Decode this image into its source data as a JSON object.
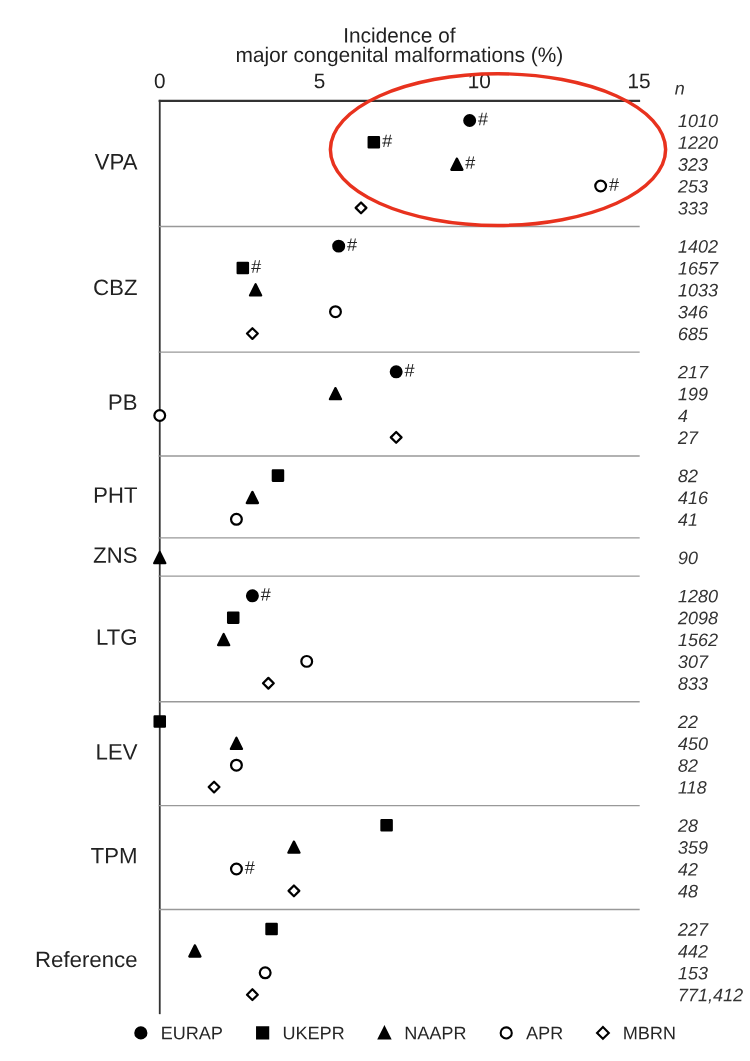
{
  "chart_data": [
    {
      "type": "scatter",
      "orientation": "horizontal",
      "xlabel": "Incidence of\nmajor congenital malformations (%)",
      "ylabel": "VPA",
      "categories": [
        "1010",
        "1220",
        "323",
        "253",
        "333"
      ],
      "xlim": [
        0,
        15
      ],
      "xticks": [
        0,
        5,
        10,
        15
      ],
      "annotations": [
        "n",
        {
          "text": "#",
          "x": 9.7,
          "y": "1010"
        },
        {
          "text": "#",
          "x": 6.7,
          "y": "1220"
        },
        {
          "text": "#",
          "x": 9.3,
          "y": "323"
        },
        {
          "text": "#",
          "x": 13.8,
          "y": "253"
        }
      ],
      "series": [
        {
          "color": "#000000",
          "marker": "circle",
          "values": [
            9.7,
            null,
            null,
            null,
            null
          ]
        },
        {
          "color": "#000000",
          "marker": "square",
          "values": [
            null,
            6.7,
            null,
            null,
            null
          ]
        },
        {
          "color": "#000000",
          "marker": "triangle",
          "values": [
            null,
            null,
            9.3,
            null,
            null
          ]
        },
        {
          "color": "#ffffff",
          "marker": "circle",
          "values": [
            null,
            null,
            null,
            13.8,
            null
          ]
        },
        {
          "color": "#ffffff",
          "marker": "diamond",
          "values": [
            null,
            null,
            null,
            null,
            6.3
          ]
        }
      ]
    },
    {
      "type": "scatter",
      "orientation": "horizontal",
      "ylabel": "CBZ",
      "categories": [
        "1402",
        "1657",
        "1033",
        "346",
        "685"
      ],
      "xlim": [
        0,
        15
      ],
      "tick_labels": "y",
      "annotations": [
        {
          "text": "#",
          "x": 5.6,
          "y": "1402"
        },
        {
          "text": "#",
          "x": 2.6,
          "y": "1657"
        }
      ],
      "series": [
        {
          "color": "#000000",
          "marker": "circle",
          "values": [
            5.6,
            null,
            null,
            null,
            null
          ]
        },
        {
          "color": "#000000",
          "marker": "square",
          "values": [
            null,
            2.6,
            null,
            null,
            null
          ]
        },
        {
          "color": "#000000",
          "marker": "triangle",
          "values": [
            null,
            null,
            3.0,
            null,
            null
          ]
        },
        {
          "color": "#ffffff",
          "marker": "circle",
          "values": [
            null,
            null,
            null,
            5.5,
            null
          ]
        },
        {
          "color": "#ffffff",
          "marker": "diamond",
          "values": [
            null,
            null,
            null,
            null,
            2.9
          ]
        }
      ]
    },
    {
      "type": "scatter",
      "orientation": "horizontal",
      "ylabel": "PB",
      "categories": [
        "217",
        "199",
        "4",
        "27"
      ],
      "xlim": [
        0,
        15
      ],
      "tick_labels": "y",
      "annotations": [
        {
          "text": "#",
          "x": 7.4,
          "y": "217"
        }
      ],
      "series": [
        {
          "color": "#000000",
          "marker": "circle",
          "values": [
            7.4,
            null,
            null,
            null
          ]
        },
        {
          "color": "#000000",
          "marker": "triangle",
          "values": [
            null,
            5.5,
            null,
            null
          ]
        },
        {
          "color": "#ffffff",
          "marker": "circle",
          "values": [
            null,
            null,
            0,
            null
          ]
        },
        {
          "color": "#ffffff",
          "marker": "diamond",
          "values": [
            null,
            null,
            null,
            7.4
          ]
        }
      ]
    },
    {
      "type": "scatter",
      "orientation": "horizontal",
      "ylabel": "PHT",
      "categories": [
        "82",
        "416",
        "41"
      ],
      "xlim": [
        0,
        15
      ],
      "tick_labels": "y",
      "series": [
        {
          "color": "#000000",
          "marker": "square",
          "values": [
            3.7,
            null,
            null
          ]
        },
        {
          "color": "#000000",
          "marker": "triangle",
          "values": [
            null,
            2.9,
            null
          ]
        },
        {
          "color": "#ffffff",
          "marker": "circle",
          "values": [
            null,
            null,
            2.4
          ]
        }
      ]
    },
    {
      "type": "scatter",
      "orientation": "horizontal",
      "ylabel": "ZNS",
      "categories": [
        "90"
      ],
      "xlim": [
        0,
        15
      ],
      "tick_labels": "y",
      "series": [
        {
          "color": "#000000",
          "marker": "triangle",
          "values": [
            0
          ]
        }
      ]
    },
    {
      "type": "scatter",
      "orientation": "horizontal",
      "ylabel": "LTG",
      "categories": [
        "1280",
        "2098",
        "1562",
        "307",
        "833"
      ],
      "xlim": [
        0,
        15
      ],
      "tick_labels": "y",
      "annotations": [
        {
          "text": "#",
          "x": 2.9,
          "y": "1280"
        }
      ],
      "series": [
        {
          "color": "#000000",
          "marker": "circle",
          "values": [
            2.9,
            null,
            null,
            null,
            null
          ]
        },
        {
          "color": "#000000",
          "marker": "square",
          "values": [
            null,
            2.3,
            null,
            null,
            null
          ]
        },
        {
          "color": "#000000",
          "marker": "triangle",
          "values": [
            null,
            null,
            2.0,
            null,
            null
          ]
        },
        {
          "color": "#ffffff",
          "marker": "circle",
          "values": [
            null,
            null,
            null,
            4.6,
            null
          ]
        },
        {
          "color": "#ffffff",
          "marker": "diamond",
          "values": [
            null,
            null,
            null,
            null,
            3.4
          ]
        }
      ]
    },
    {
      "type": "scatter",
      "orientation": "horizontal",
      "ylabel": "LEV",
      "categories": [
        "22",
        "450",
        "82",
        "118"
      ],
      "xlim": [
        0,
        15
      ],
      "tick_labels": "y",
      "series": [
        {
          "color": "#000000",
          "marker": "square",
          "values": [
            0,
            null,
            null,
            null
          ]
        },
        {
          "color": "#000000",
          "marker": "triangle",
          "values": [
            null,
            2.4,
            null,
            null
          ]
        },
        {
          "color": "#ffffff",
          "marker": "circle",
          "values": [
            null,
            null,
            2.4,
            null
          ]
        },
        {
          "color": "#ffffff",
          "marker": "diamond",
          "values": [
            null,
            null,
            null,
            1.7
          ]
        }
      ]
    },
    {
      "type": "scatter",
      "orientation": "horizontal",
      "ylabel": "TPM",
      "categories": [
        "28",
        "359",
        "42",
        "48"
      ],
      "xlim": [
        0,
        15
      ],
      "tick_labels": "y",
      "annotations": [
        {
          "text": "#",
          "x": 2.4,
          "y": "42"
        }
      ],
      "series": [
        {
          "color": "#000000",
          "marker": "square",
          "values": [
            7.1,
            null,
            null,
            null
          ]
        },
        {
          "color": "#000000",
          "marker": "triangle",
          "values": [
            null,
            4.2,
            null,
            null
          ]
        },
        {
          "color": "#ffffff",
          "marker": "circle",
          "values": [
            null,
            null,
            2.4,
            null
          ]
        },
        {
          "color": "#ffffff",
          "marker": "diamond",
          "values": [
            null,
            null,
            null,
            4.2
          ]
        }
      ]
    },
    {
      "type": "scatter",
      "orientation": "horizontal",
      "ylabel": "Reference",
      "categories": [
        "227",
        "442",
        "153",
        "771,412"
      ],
      "xlim": [
        0,
        15
      ],
      "tick_labels": "y",
      "legend": "bottom",
      "series": [
        {
          "name": "EURAP",
          "color": "#000000",
          "marker": "circle",
          "values": [
            null,
            null,
            null,
            null
          ]
        },
        {
          "name": "UKEPR",
          "color": "#000000",
          "marker": "square",
          "values": [
            3.5,
            null,
            null,
            null
          ]
        },
        {
          "name": "NAAPR",
          "color": "#000000",
          "marker": "triangle",
          "values": [
            null,
            1.1,
            null,
            null
          ]
        },
        {
          "name": "APR",
          "color": "#ffffff",
          "marker": "circle",
          "values": [
            null,
            null,
            3.3,
            null
          ]
        },
        {
          "name": "MBRN",
          "color": "#ffffff",
          "marker": "diamond",
          "values": [
            null,
            null,
            null,
            2.9
          ]
        }
      ]
    }
  ]
}
